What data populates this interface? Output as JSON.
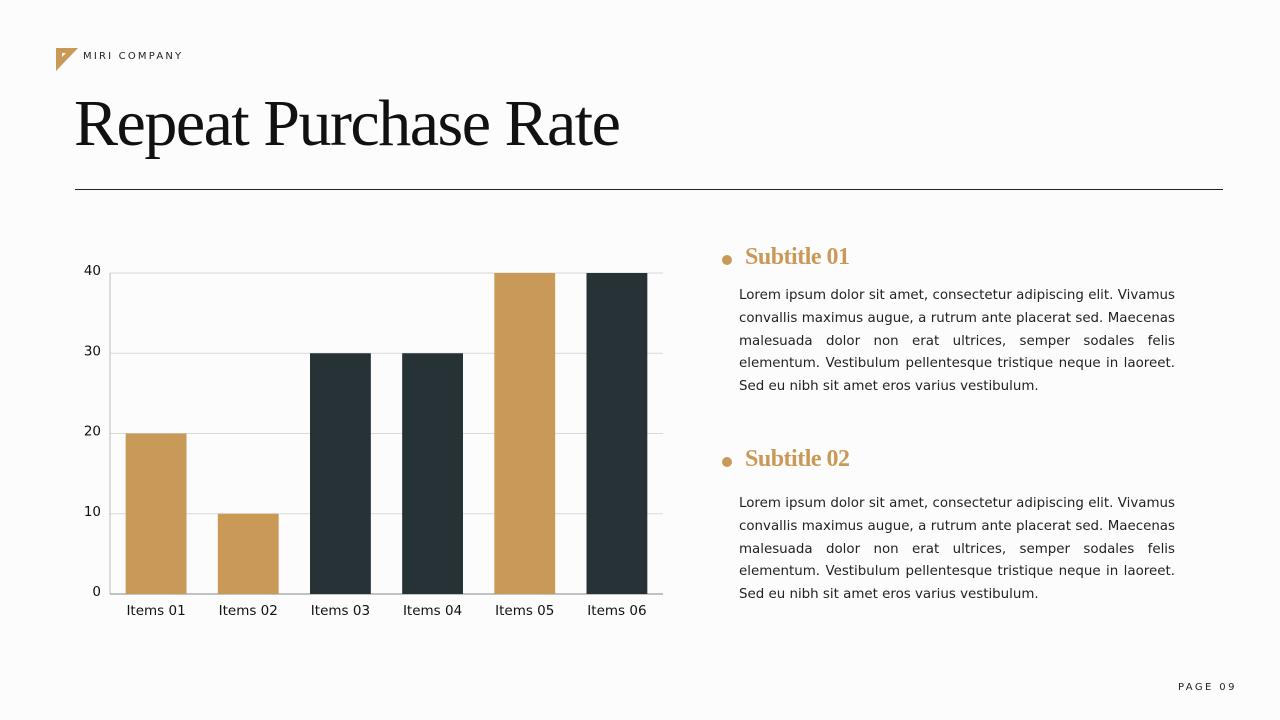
{
  "brand": "MIRI COMPANY",
  "title": "Repeat Purchase Rate",
  "chart_data": {
    "type": "bar",
    "categories": [
      "Items 01",
      "Items 02",
      "Items 03",
      "Items 04",
      "Items 05",
      "Items 06"
    ],
    "values": [
      20,
      10,
      30,
      30,
      40,
      40
    ],
    "colors": [
      "#c99a57",
      "#c99a57",
      "#263236",
      "#263236",
      "#c99a57",
      "#263236"
    ],
    "ylim": [
      0,
      40
    ],
    "yticks": [
      0,
      10,
      20,
      30,
      40
    ],
    "grid": true
  },
  "sections": [
    {
      "subtitle": "Subtitle 01",
      "text": "Lorem ipsum dolor sit amet, consectetur adipiscing elit. Vivamus convallis maximus augue, a rutrum ante placerat sed. Maecenas malesuada dolor non erat ultrices, semper sodales felis elementum. Vestibulum pellentesque tristique neque in laoreet. Sed eu nibh sit amet eros varius vestibulum."
    },
    {
      "subtitle": "Subtitle 02",
      "text": "Lorem ipsum dolor sit amet, consectetur adipiscing elit. Vivamus convallis maximus augue, a rutrum ante placerat sed. Maecenas malesuada dolor non erat ultrices, semper sodales felis elementum. Vestibulum pellentesque tristique neque in laoreet. Sed eu nibh sit amet eros varius vestibulum."
    }
  ],
  "page": "PAGE 09"
}
